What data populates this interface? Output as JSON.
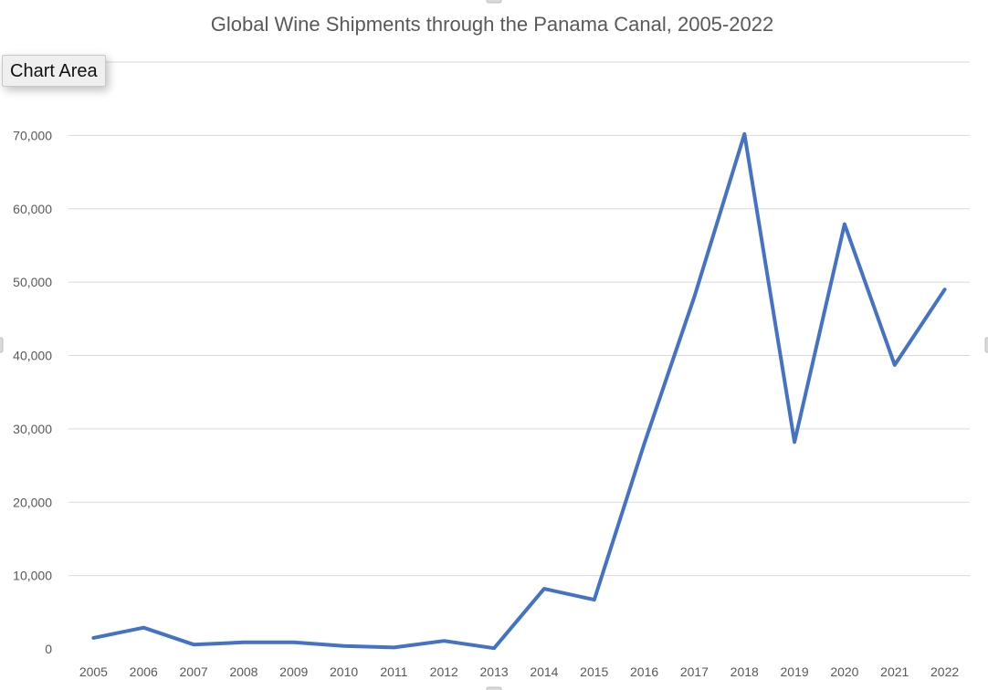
{
  "tooltip": {
    "label": "Chart Area"
  },
  "colors": {
    "series": "#4472c4",
    "grid": "#d9d9d9",
    "text": "#595959",
    "background": "#ffffff"
  },
  "chart_data": {
    "type": "line",
    "title": "Global Wine Shipments through the Panama Canal, 2005-2022",
    "xlabel": "",
    "ylabel": "",
    "categories": [
      "2005",
      "2006",
      "2007",
      "2008",
      "2009",
      "2010",
      "2011",
      "2012",
      "2013",
      "2014",
      "2015",
      "2016",
      "2017",
      "2018",
      "2019",
      "2020",
      "2021",
      "2022"
    ],
    "series": [
      {
        "name": "",
        "values": [
          1500,
          2900,
          600,
          900,
          900,
          400,
          200,
          1100,
          100,
          8200,
          6700,
          28000,
          48000,
          70200,
          28200,
          57900,
          38700,
          49000
        ]
      }
    ],
    "ylim": [
      0,
      80000
    ],
    "yticks": [
      0,
      10000,
      20000,
      30000,
      40000,
      50000,
      60000,
      70000,
      80000
    ],
    "ytick_labels": [
      "0",
      "10,000",
      "20,000",
      "30,000",
      "40,000",
      "50,000",
      "60,000",
      "70,000",
      ""
    ],
    "grid": true,
    "legend": "none"
  }
}
